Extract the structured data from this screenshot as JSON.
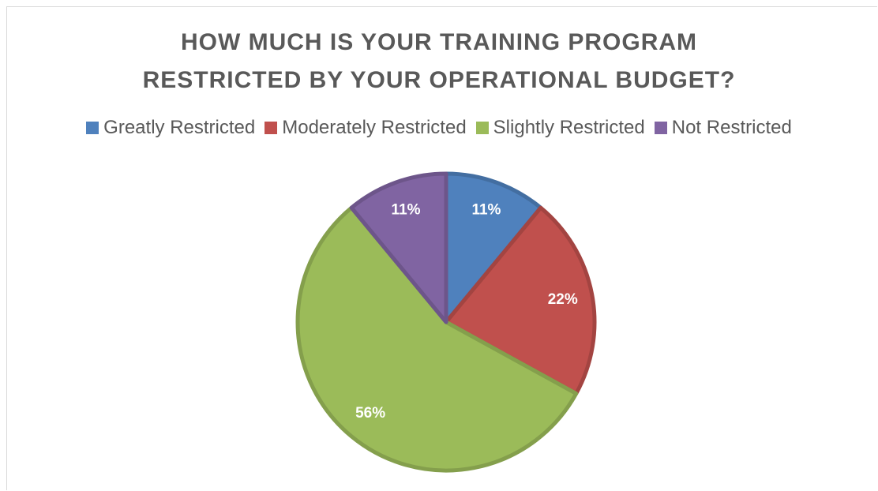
{
  "chart_data": {
    "type": "pie",
    "title": "HOW MUCH IS YOUR TRAINING PROGRAM RESTRICTED BY YOUR OPERATIONAL BUDGET?",
    "categories": [
      "Greatly Restricted",
      "Moderately Restricted",
      "Slightly Restricted",
      "Not Restricted"
    ],
    "values": [
      11,
      22,
      56,
      11
    ],
    "value_labels": [
      "11%",
      "22%",
      "56%",
      "11%"
    ],
    "colors": [
      "#4f81bd",
      "#c0504d",
      "#9bbb59",
      "#8064a2"
    ],
    "legend": "top"
  }
}
